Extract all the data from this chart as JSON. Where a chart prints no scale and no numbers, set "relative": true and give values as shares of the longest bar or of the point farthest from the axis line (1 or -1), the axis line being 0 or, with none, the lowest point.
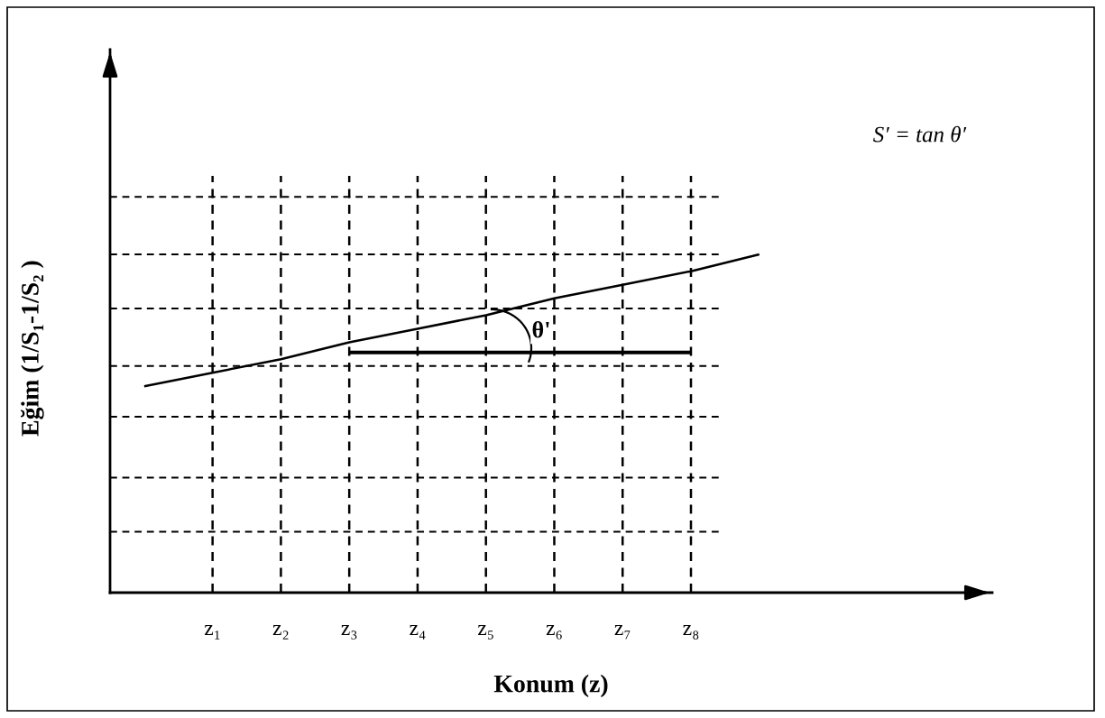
{
  "chart_data": {
    "type": "line",
    "relative": true,
    "xlabel": "Konum (z)",
    "ylabel": "Eğim (1/S₁-1/S₂ )",
    "categories": [
      null,
      "z₁",
      "z₂",
      "z₃",
      "z₄",
      "z₅",
      "z₆",
      "z₇",
      "z₈",
      null
    ],
    "series": [
      {
        "color": "#000000",
        "values": [
          0.61,
          0.65,
          0.69,
          0.74,
          0.78,
          0.82,
          0.87,
          0.91,
          0.95,
          1.0
        ]
      },
      {
        "color": "#000000",
        "values": [
          null,
          null,
          null,
          0.71,
          0.71,
          0.71,
          0.71,
          0.71,
          0.71,
          null
        ]
      }
    ],
    "grid": "x",
    "tick_labels": "x",
    "marker": "none",
    "line_style": "solid",
    "ref_lines": [
      {
        "axis": "y",
        "value": 0.18,
        "line_style": "dashed"
      },
      {
        "axis": "y",
        "value": 0.34,
        "line_style": "dashed"
      },
      {
        "axis": "y",
        "value": 0.52,
        "line_style": "dashed"
      },
      {
        "axis": "y",
        "value": 0.67,
        "line_style": "dashed"
      },
      {
        "axis": "y",
        "value": 0.84,
        "line_style": "dashed"
      },
      {
        "axis": "y",
        "value": 1.0,
        "line_style": "dashed"
      },
      {
        "axis": "y",
        "value": 1.17,
        "line_style": "dashed"
      }
    ],
    "annotations": [
      "θ'",
      "S′ = tan θ′"
    ]
  }
}
